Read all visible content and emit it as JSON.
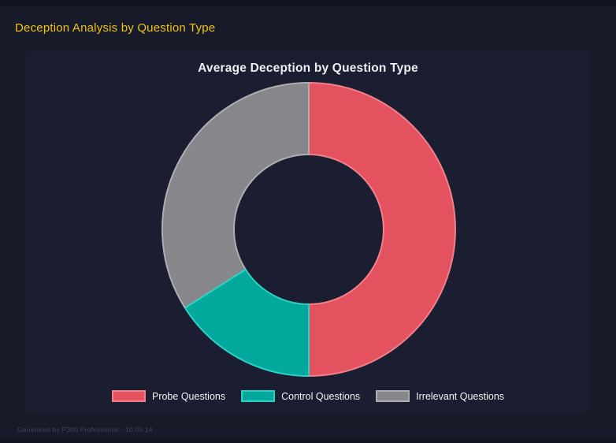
{
  "window": {
    "title": "Deception Analysis by Question Type",
    "footer_note": "Generated by P300 Professional - 10:05:14"
  },
  "colors": {
    "page_bg": "#171a28",
    "panel_bg": "#1b1e31",
    "strip_bg": "#121420",
    "title_yellow": "#f0c314",
    "chart_title_text": "#eceef2",
    "legend_text": "#f2f3f5",
    "footer_text": "#3e4457"
  },
  "chart_data": {
    "type": "pie",
    "subtype": "doughnut",
    "title": "Average Deception by Question Type",
    "legend_position": "bottom",
    "direction": "clockwise",
    "start_angle_deg": 0,
    "cutout_ratio": 0.51,
    "categories": [
      "Probe Questions",
      "Control Questions",
      "Irrelevant Questions"
    ],
    "values_percent": [
      50,
      16,
      34
    ],
    "colors": [
      "#e4525f",
      "#03a89d",
      "#87878b"
    ],
    "border_colors": [
      "#f0808a",
      "#2fd0c4",
      "#aeaeb2"
    ]
  }
}
